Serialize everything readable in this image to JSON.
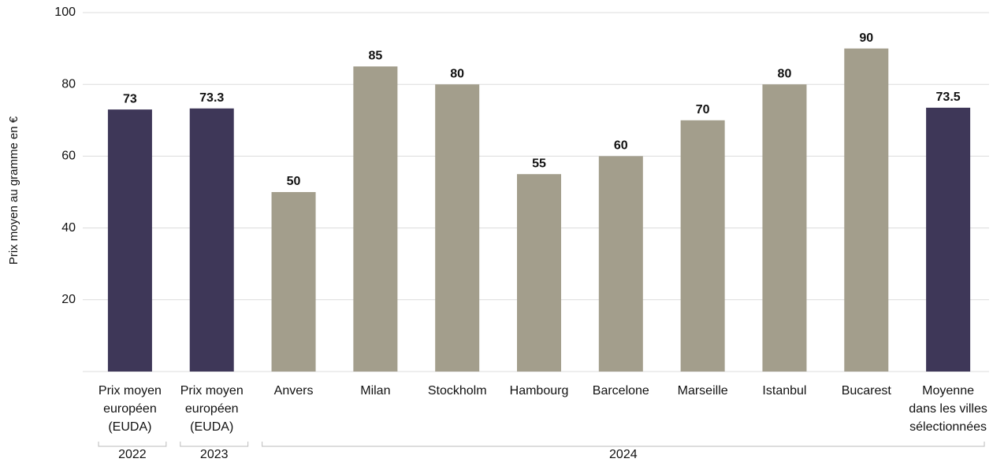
{
  "chart_data": {
    "type": "bar",
    "y_label": "Prix moyen au gramme en €",
    "categories": [
      [
        "Prix moyen",
        "européen",
        "(EUDA)"
      ],
      [
        "Prix moyen",
        "européen",
        "(EUDA)"
      ],
      [
        "Anvers"
      ],
      [
        "Milan"
      ],
      [
        "Stockholm"
      ],
      [
        "Hambourg"
      ],
      [
        "Barcelone"
      ],
      [
        "Marseille"
      ],
      [
        "Istanbul"
      ],
      [
        "Bucarest"
      ],
      [
        "Moyenne",
        "dans les villes",
        "sélectionnées"
      ]
    ],
    "values": [
      73,
      73.3,
      50,
      85,
      80,
      55,
      60,
      70,
      80,
      90,
      73.5
    ],
    "colors": [
      "#3e3758",
      "#3e3758",
      "#a39e8c",
      "#a39e8c",
      "#a39e8c",
      "#a39e8c",
      "#a39e8c",
      "#a39e8c",
      "#a39e8c",
      "#a39e8c",
      "#3e3758"
    ],
    "groups": [
      {
        "label": "2022",
        "span": 1
      },
      {
        "label": "2023",
        "span": 1
      },
      {
        "label": "2024",
        "span": 9
      }
    ],
    "ylim": [
      0,
      100
    ],
    "yticks": [
      20,
      40,
      60,
      80,
      100
    ],
    "grid": true
  }
}
